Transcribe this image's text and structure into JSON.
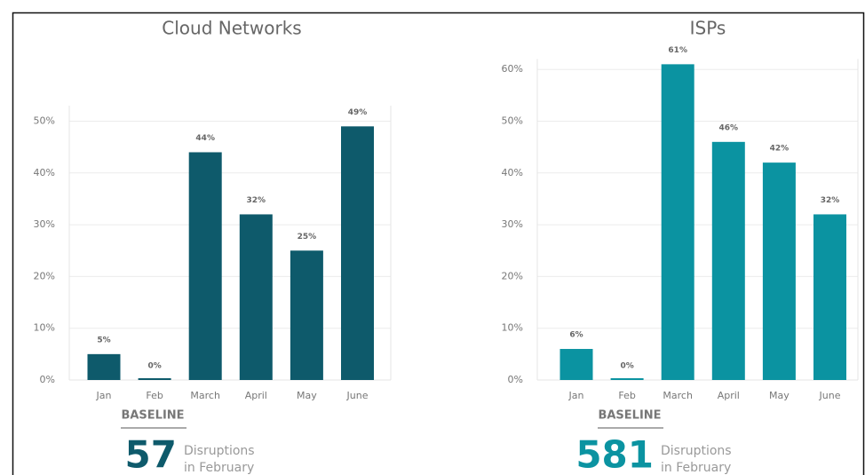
{
  "chart_data": [
    {
      "type": "bar",
      "title": "Cloud Networks",
      "categories": [
        "Jan",
        "Feb",
        "March",
        "April",
        "May",
        "June"
      ],
      "values": [
        5,
        0,
        44,
        32,
        25,
        49
      ],
      "value_labels": [
        "5%",
        "0%",
        "44%",
        "32%",
        "25%",
        "49%"
      ],
      "color": "#0e5a6b",
      "ylim": [
        0,
        53
      ],
      "yticks": [
        {
          "value": 0,
          "label": "0%"
        },
        {
          "value": 10,
          "label": "10%"
        },
        {
          "value": 20,
          "label": "20%"
        },
        {
          "value": 30,
          "label": "30%"
        },
        {
          "value": 40,
          "label": "40%"
        },
        {
          "value": 50,
          "label": "50%"
        }
      ],
      "grid": true,
      "baseline_label": "BASELINE",
      "baseline_value": 57,
      "baseline_text": [
        "Disruptions",
        "in February"
      ]
    },
    {
      "type": "bar",
      "title": "ISPs",
      "categories": [
        "Jan",
        "Feb",
        "March",
        "April",
        "May",
        "June"
      ],
      "values": [
        6,
        0,
        61,
        46,
        42,
        32
      ],
      "value_labels": [
        "6%",
        "0%",
        "61%",
        "46%",
        "42%",
        "32%"
      ],
      "color": "#0b93a1",
      "ylim": [
        0,
        62
      ],
      "yticks": [
        {
          "value": 0,
          "label": "0%"
        },
        {
          "value": 10,
          "label": "10%"
        },
        {
          "value": 20,
          "label": "20%"
        },
        {
          "value": 30,
          "label": "30%"
        },
        {
          "value": 40,
          "label": "40%"
        },
        {
          "value": 50,
          "label": "50%"
        },
        {
          "value": 60,
          "label": "60%"
        }
      ],
      "grid": true,
      "baseline_label": "BASELINE",
      "baseline_value": 581,
      "baseline_text": [
        "Disruptions",
        "in February"
      ]
    }
  ]
}
